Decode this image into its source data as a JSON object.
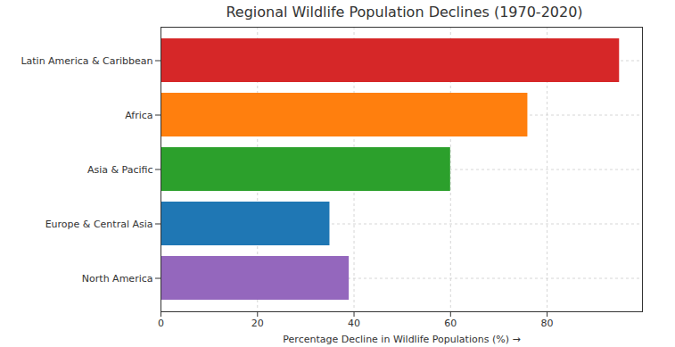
{
  "chart_data": {
    "type": "bar",
    "orientation": "horizontal",
    "title": "Regional Wildlife Population Declines (1970-2020)",
    "x_label": "Percentage Decline in Wildlife Populations (%)",
    "categories": [
      "Latin America & Caribbean",
      "Africa",
      "Asia & Pacific",
      "Europe & Central Asia",
      "North America"
    ],
    "values": [
      95,
      76,
      60,
      35,
      39
    ],
    "colors": [
      "#d62728",
      "#ff7f0e",
      "#2ca02c",
      "#1f77b4",
      "#9467bd"
    ],
    "xlim": [
      0,
      99.75
    ],
    "xticks": [
      0,
      20,
      40,
      60,
      80
    ],
    "grid": true
  }
}
